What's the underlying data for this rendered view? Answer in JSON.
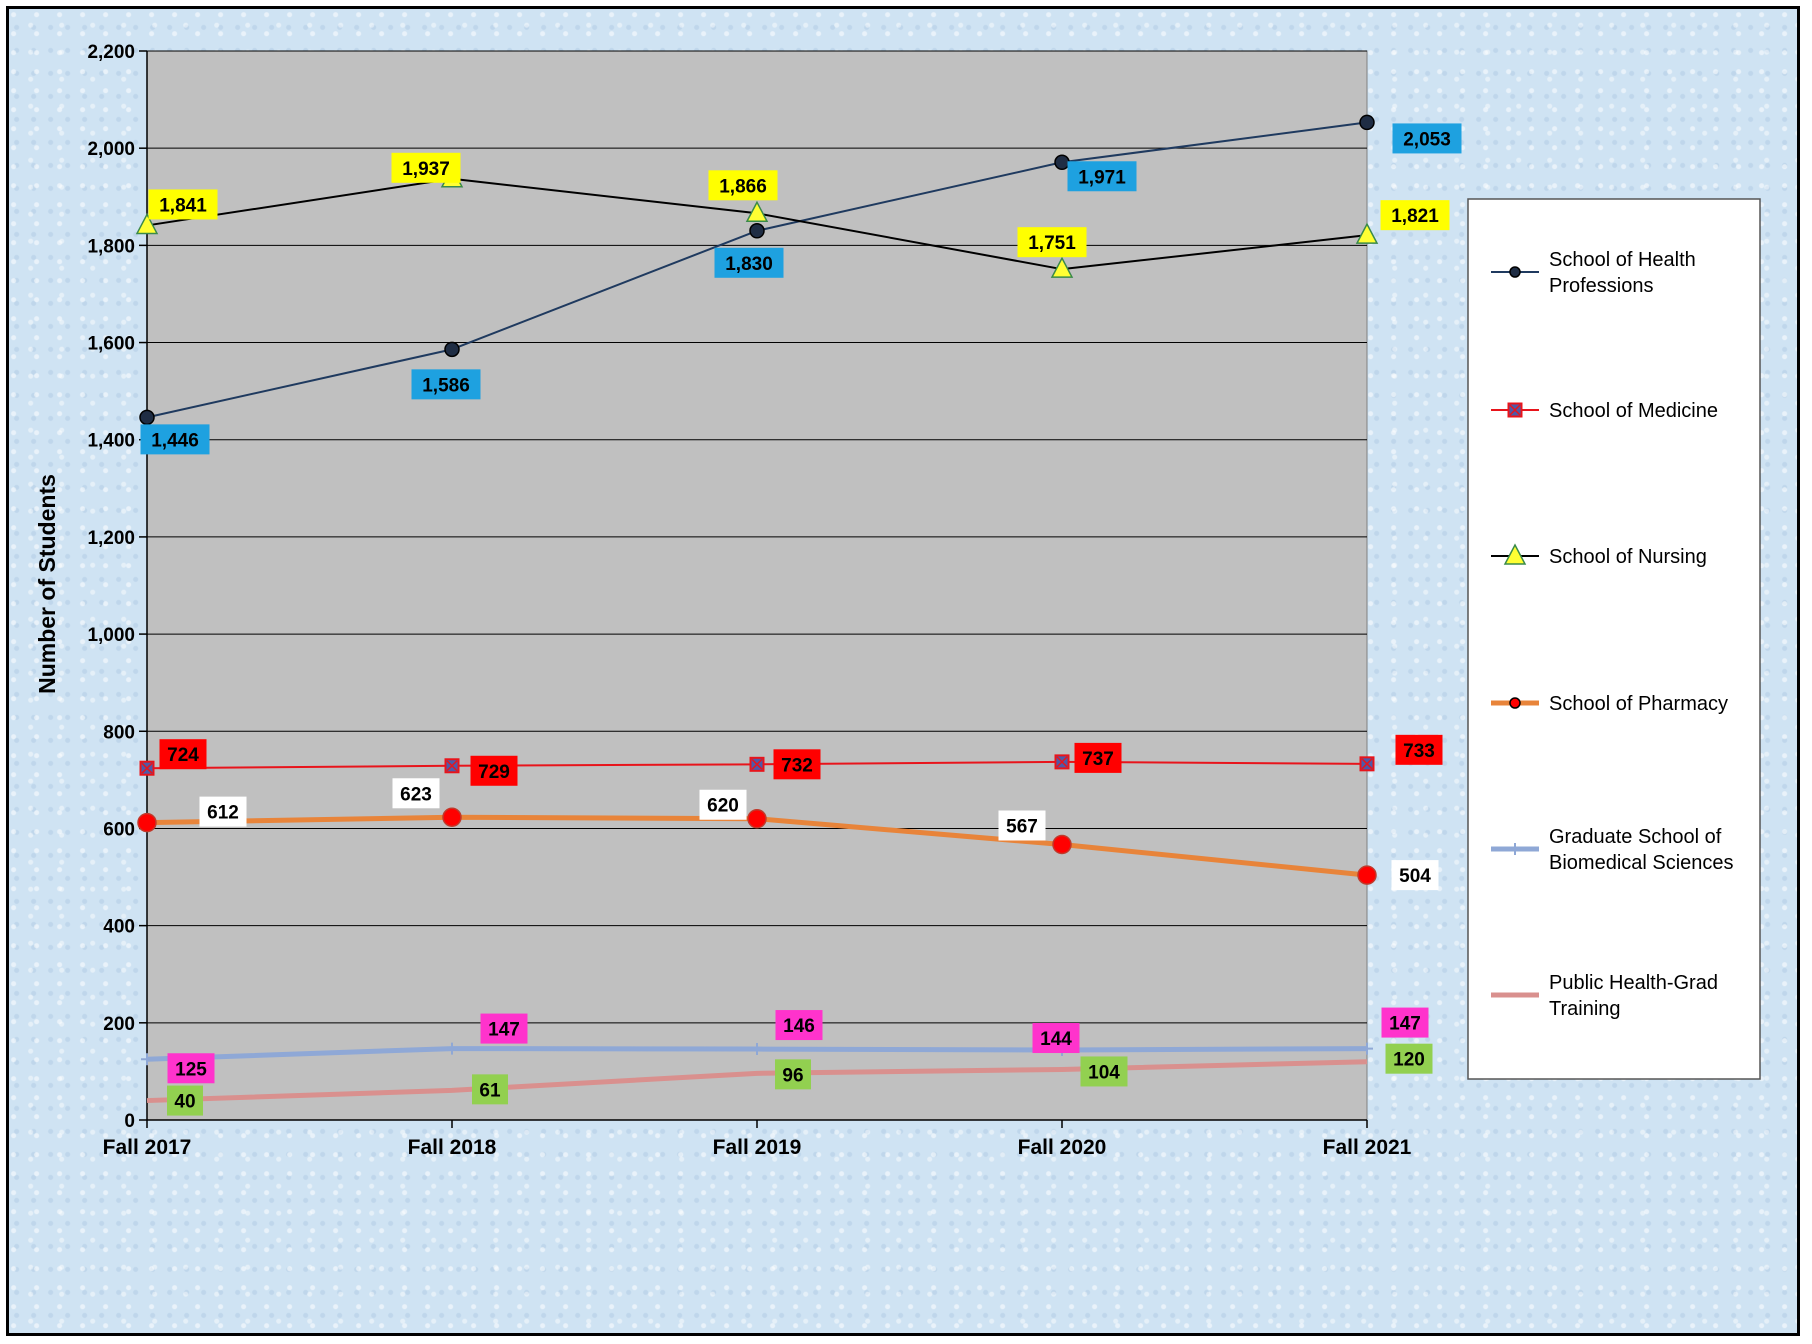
{
  "chart_data": {
    "type": "line",
    "categories": [
      "Fall 2017",
      "Fall 2018",
      "Fall 2019",
      "Fall 2020",
      "Fall 2021"
    ],
    "ylabel": "Number of Students",
    "ylim": [
      0,
      2200
    ],
    "yticks": [
      0,
      200,
      400,
      600,
      800,
      1000,
      1200,
      1400,
      1600,
      1800,
      2000,
      2200
    ],
    "ytick_labels": [
      "0",
      "200",
      "400",
      "600",
      "800",
      "1,000",
      "1,200",
      "1,400",
      "1,600",
      "1,800",
      "2,000",
      "2,200"
    ],
    "grid": true,
    "legend_position": "right",
    "series": [
      {
        "name": "School of Health Professions",
        "values": [
          1446,
          1586,
          1830,
          1971,
          2053
        ],
        "labels": [
          "1,446",
          "1,586",
          "1,830",
          "1,971",
          "2,053"
        ],
        "color": "#1f3a5f",
        "marker": "circle",
        "marker_fill": "#1f2d44",
        "label_bg": "#1ea1e0",
        "label_fg": "#000000"
      },
      {
        "name": "School of Medicine",
        "values": [
          724,
          729,
          732,
          737,
          733
        ],
        "labels": [
          "724",
          "729",
          "732",
          "737",
          "733"
        ],
        "color": "#e8141b",
        "marker": "square",
        "marker_fill": "#4e5aa8",
        "label_bg": "#ff0000",
        "label_fg": "#000000"
      },
      {
        "name": "School of Nursing",
        "values": [
          1841,
          1937,
          1866,
          1751,
          1821
        ],
        "labels": [
          "1,841",
          "1,937",
          "1,866",
          "1,751",
          "1,821"
        ],
        "color": "#000000",
        "marker": "triangle",
        "marker_fill": "#ffff33",
        "label_bg": "#ffff00",
        "label_fg": "#000000"
      },
      {
        "name": "School of Pharmacy",
        "values": [
          612,
          623,
          620,
          567,
          504
        ],
        "labels": [
          "612",
          "623",
          "620",
          "567",
          "504"
        ],
        "color": "#e8843a",
        "marker": "circle",
        "marker_fill": "#ff0000",
        "label_bg": "#ffffff",
        "label_fg": "#000000"
      },
      {
        "name": "Graduate School of Biomedical Sciences",
        "values": [
          125,
          147,
          146,
          144,
          147
        ],
        "labels": [
          "125",
          "147",
          "146",
          "144",
          "147"
        ],
        "color": "#8fa8d6",
        "marker": "plus",
        "marker_fill": "#8fa8d6",
        "label_bg": "#ff33cc",
        "label_fg": "#000000"
      },
      {
        "name": "Public Health-Grad Training",
        "values": [
          40,
          61,
          96,
          104,
          120
        ],
        "labels": [
          "40",
          "61",
          "96",
          "104",
          "120"
        ],
        "color": "#d9908e",
        "marker": "none",
        "marker_fill": "#d9908e",
        "label_bg": "#92d050",
        "label_fg": "#000000"
      }
    ]
  }
}
